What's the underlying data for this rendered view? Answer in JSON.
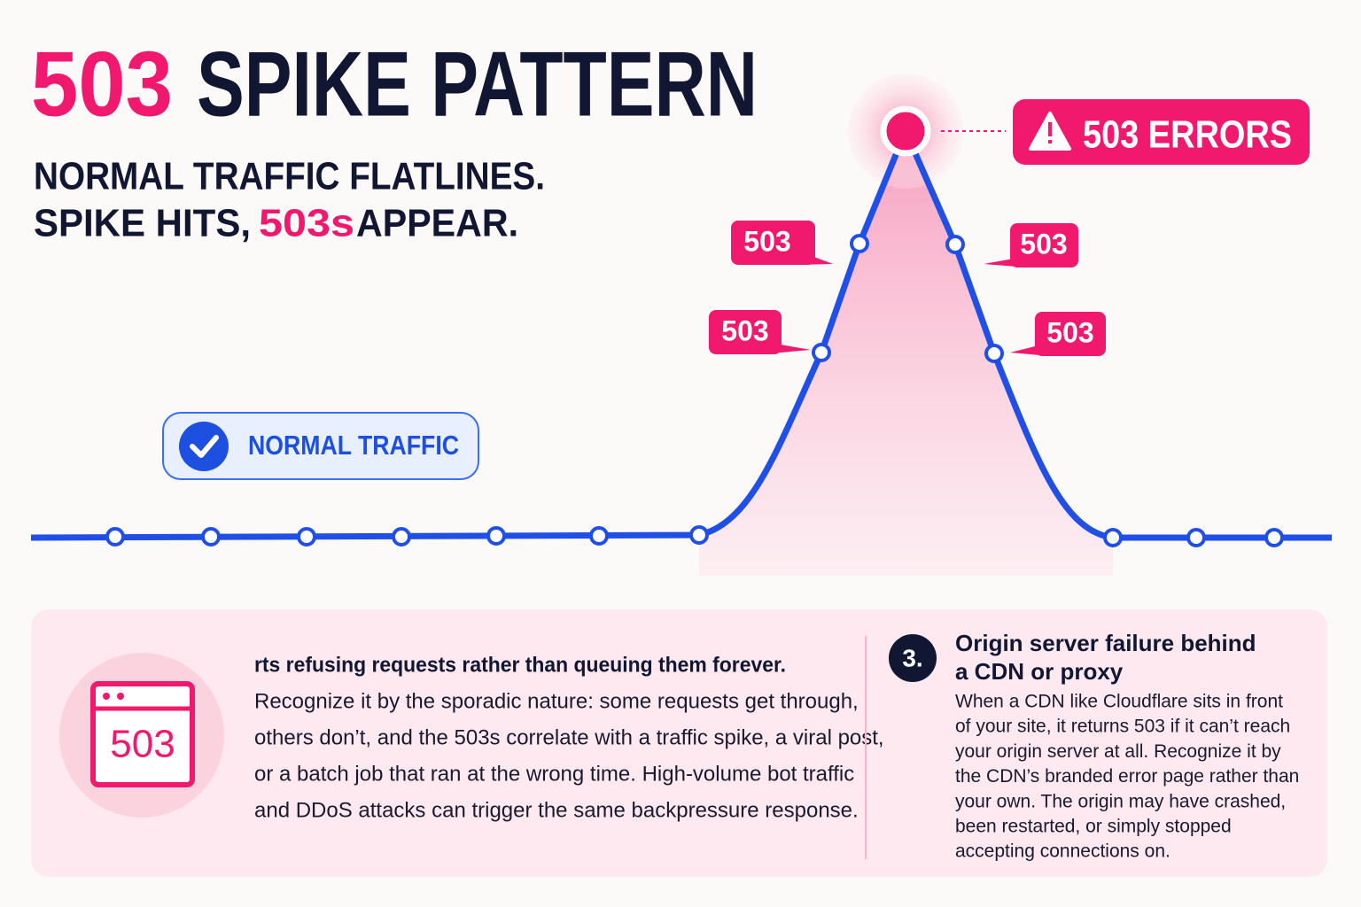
{
  "header": {
    "title_accent": "503",
    "title": "SPIKE PATTERN",
    "subtitle_line1": "NORMAL TRAFFIC FLATLINES.",
    "subtitle_line2_start": "SPIKE HITS, ",
    "subtitle_line2_accent": "503s",
    "subtitle_line2_end": " APPEAR."
  },
  "graph": {
    "peak_badge": "503 ERRORS",
    "callouts": [
      "503",
      "503",
      "503",
      "503"
    ],
    "normal_label": "NORMAL TRAFFIC"
  },
  "panel": {
    "icon_label": "503",
    "left_heading": "rts refusing requests rather than queuing them forever.",
    "left_lines": [
      "Recognize it by the sporadic nature: some requests get through,",
      "others don’t, and the 503s correlate with a traffic spike, a viral post,",
      "or a batch job that ran at the wrong time. High-volume bot traffic",
      "and DDoS attacks can trigger the same backpressure response."
    ],
    "number": "3.",
    "right_heading": [
      "Origin server failure behind",
      "a CDN or proxy"
    ],
    "right_lines": [
      "When a CDN like Cloudflare sits in front",
      "of your site, it returns 503 if it can’t reach",
      "your origin server at all.  Recognize it by",
      "the CDN’s branded error page rather than",
      "your own. The origin may have crashed,",
      "been restarted, or simply stopped",
      "accepting connections on."
    ]
  }
}
